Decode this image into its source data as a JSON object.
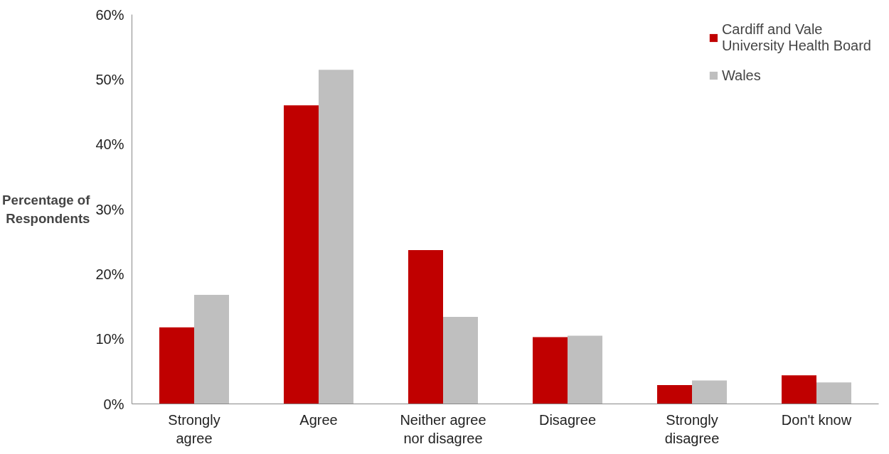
{
  "chart_data": {
    "type": "bar",
    "ylabel": "Percentage of Respondents",
    "categories": [
      "Strongly agree",
      "Agree",
      "Neither agree nor disagree",
      "Disagree",
      "Strongly disagree",
      "Don't know"
    ],
    "series": [
      {
        "name": "Cardiff and Vale University Health Board",
        "color": "#c00000",
        "values": [
          11.8,
          46.0,
          23.7,
          10.3,
          2.9,
          4.4
        ]
      },
      {
        "name": "Wales",
        "color": "#bfbfbf",
        "values": [
          16.8,
          51.5,
          13.4,
          10.5,
          3.6,
          3.3
        ]
      }
    ],
    "ylim": [
      0,
      60
    ],
    "yticks": [
      {
        "value": 0,
        "label": "0%"
      },
      {
        "value": 10,
        "label": "10%"
      },
      {
        "value": 20,
        "label": "20%"
      },
      {
        "value": 30,
        "label": "30%"
      },
      {
        "value": 40,
        "label": "40%"
      },
      {
        "value": 50,
        "label": "50%"
      },
      {
        "value": 60,
        "label": "60%"
      }
    ],
    "grid": false,
    "legend": "top right"
  }
}
